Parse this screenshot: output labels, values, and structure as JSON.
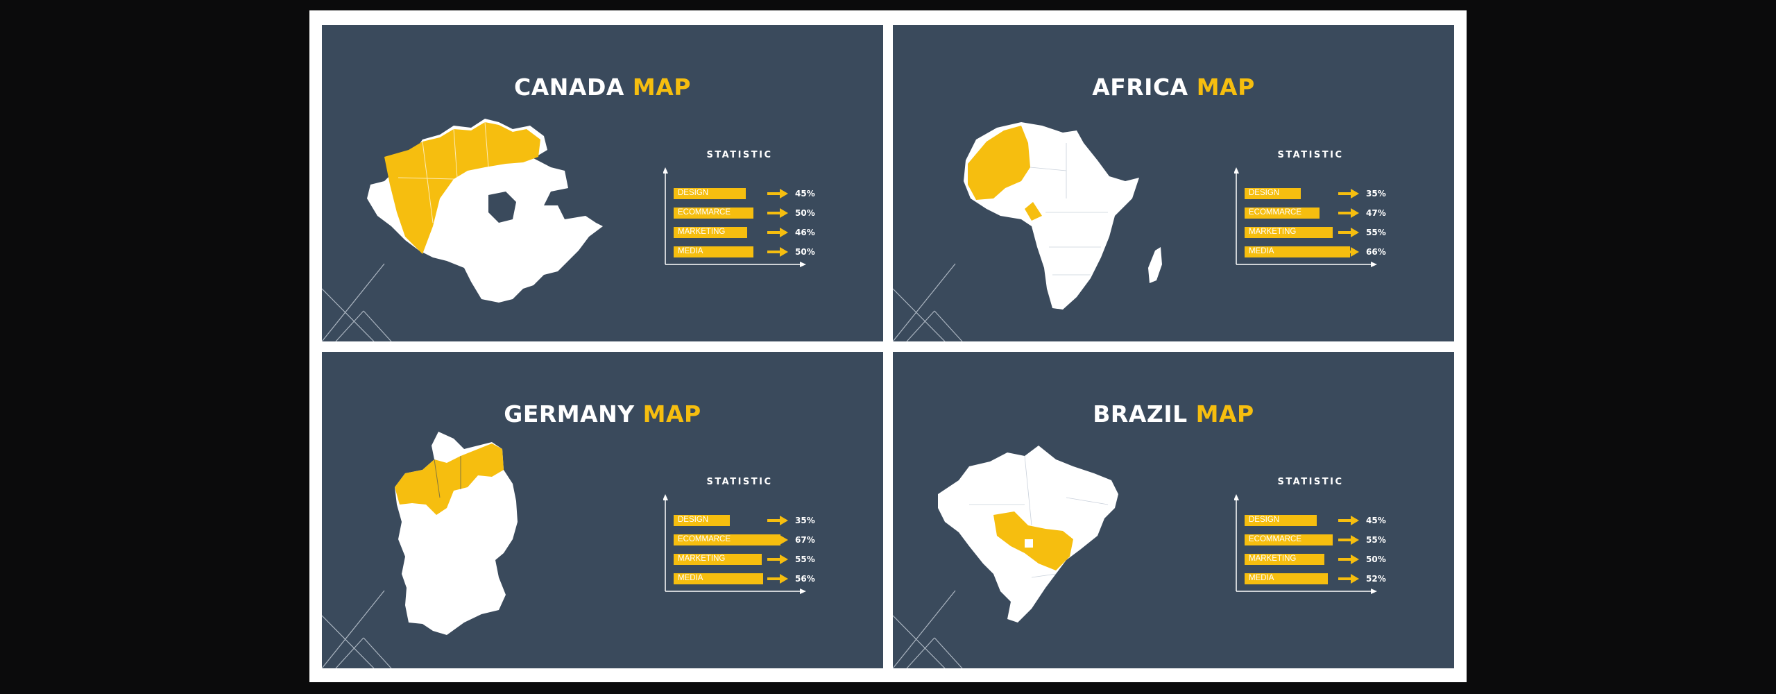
{
  "colors": {
    "background": "#0b0b0c",
    "sheet": "#ffffff",
    "slide": "#3a4a5c",
    "accent": "#f6be0f",
    "text": "#ffffff"
  },
  "slides": [
    {
      "id": "canada",
      "title_main": "CANADA",
      "title_accent": "MAP",
      "statistic_label": "STATISTIC",
      "map_icon": "canada-map-icon",
      "rows": [
        {
          "label": "DESIGN",
          "value": "45%",
          "fraction": 0.45
        },
        {
          "label": "ECOMMARCE",
          "value": "50%",
          "fraction": 0.5
        },
        {
          "label": "MARKETING",
          "value": "46%",
          "fraction": 0.46
        },
        {
          "label": "MEDIA",
          "value": "50%",
          "fraction": 0.5
        }
      ]
    },
    {
      "id": "africa",
      "title_main": "AFRICA",
      "title_accent": "MAP",
      "statistic_label": "STATISTIC",
      "map_icon": "africa-map-icon",
      "rows": [
        {
          "label": "DESIGN",
          "value": "35%",
          "fraction": 0.35
        },
        {
          "label": "ECOMMARCE",
          "value": "47%",
          "fraction": 0.47
        },
        {
          "label": "MARKETING",
          "value": "55%",
          "fraction": 0.55
        },
        {
          "label": "MEDIA",
          "value": "66%",
          "fraction": 0.66
        }
      ]
    },
    {
      "id": "germany",
      "title_main": "GERMANY",
      "title_accent": "MAP",
      "statistic_label": "STATISTIC",
      "map_icon": "germany-map-icon",
      "rows": [
        {
          "label": "DESIGN",
          "value": "35%",
          "fraction": 0.35
        },
        {
          "label": "ECOMMARCE",
          "value": "67%",
          "fraction": 0.67
        },
        {
          "label": "MARKETING",
          "value": "55%",
          "fraction": 0.55
        },
        {
          "label": "MEDIA",
          "value": "56%",
          "fraction": 0.56
        }
      ]
    },
    {
      "id": "brazil",
      "title_main": "BRAZIL",
      "title_accent": "MAP",
      "statistic_label": "STATISTIC",
      "map_icon": "brazil-map-icon",
      "rows": [
        {
          "label": "DESIGN",
          "value": "45%",
          "fraction": 0.45
        },
        {
          "label": "ECOMMARCE",
          "value": "55%",
          "fraction": 0.55
        },
        {
          "label": "MARKETING",
          "value": "50%",
          "fraction": 0.5
        },
        {
          "label": "MEDIA",
          "value": "52%",
          "fraction": 0.52
        }
      ]
    }
  ]
}
